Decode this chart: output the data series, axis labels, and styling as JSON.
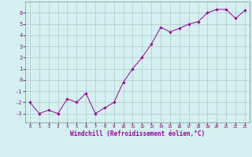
{
  "x": [
    0,
    1,
    2,
    3,
    4,
    5,
    6,
    7,
    8,
    9,
    10,
    11,
    12,
    13,
    14,
    15,
    16,
    17,
    18,
    19,
    20,
    21,
    22,
    23
  ],
  "y": [
    -2.0,
    -3.0,
    -2.7,
    -3.0,
    -1.7,
    -2.0,
    -1.2,
    -3.0,
    -2.5,
    -2.0,
    -0.2,
    1.0,
    2.0,
    3.2,
    4.7,
    4.3,
    4.6,
    5.0,
    5.2,
    6.0,
    6.3,
    6.3,
    5.5,
    6.2
  ],
  "xlim": [
    -0.5,
    23.5
  ],
  "ylim": [
    -3.8,
    7.0
  ],
  "yticks": [
    -3,
    -2,
    -1,
    0,
    1,
    2,
    3,
    4,
    5,
    6
  ],
  "xticks": [
    0,
    1,
    2,
    3,
    4,
    5,
    6,
    7,
    8,
    9,
    10,
    11,
    12,
    13,
    14,
    15,
    16,
    17,
    18,
    19,
    20,
    21,
    22,
    23
  ],
  "xlabel": "Windchill (Refroidissement éolien,°C)",
  "line_color": "#990099",
  "marker_color": "#990099",
  "bg_color": "#d4f0f0",
  "grid_color": "#b0c8c8",
  "axis_label_color": "#990099",
  "tick_label_color": "#990099",
  "figsize": [
    3.2,
    2.0
  ],
  "dpi": 100
}
